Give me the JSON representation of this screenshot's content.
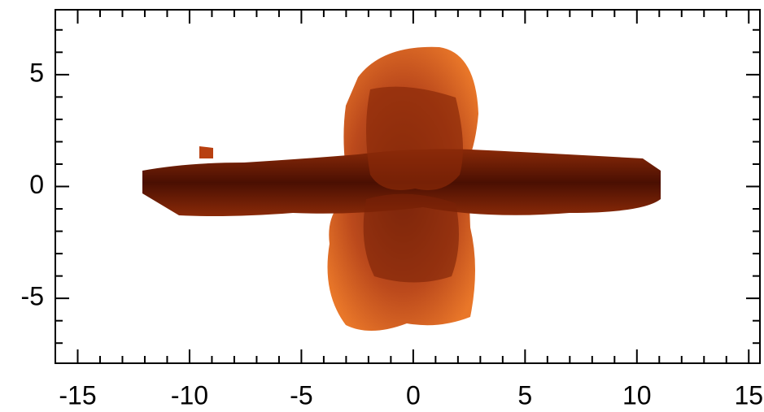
{
  "chart_data": {
    "type": "image",
    "xlim": [
      -16,
      15.5
    ],
    "ylim": [
      -7.9,
      7.9
    ],
    "xticks": [
      -15,
      -10,
      -5,
      0,
      5,
      10,
      15
    ],
    "yticks": [
      -5,
      0,
      5
    ],
    "xminorticks": [
      -14,
      -13,
      -12,
      -11,
      -9,
      -8,
      -7,
      -6,
      -4,
      -3,
      -2,
      -1,
      1,
      2,
      3,
      4,
      6,
      7,
      8,
      9,
      11,
      12,
      13,
      14
    ],
    "yminorticks": [
      -7,
      -6,
      -4,
      -3,
      -2,
      -1,
      1,
      2,
      3,
      4,
      6,
      7
    ]
  }
}
